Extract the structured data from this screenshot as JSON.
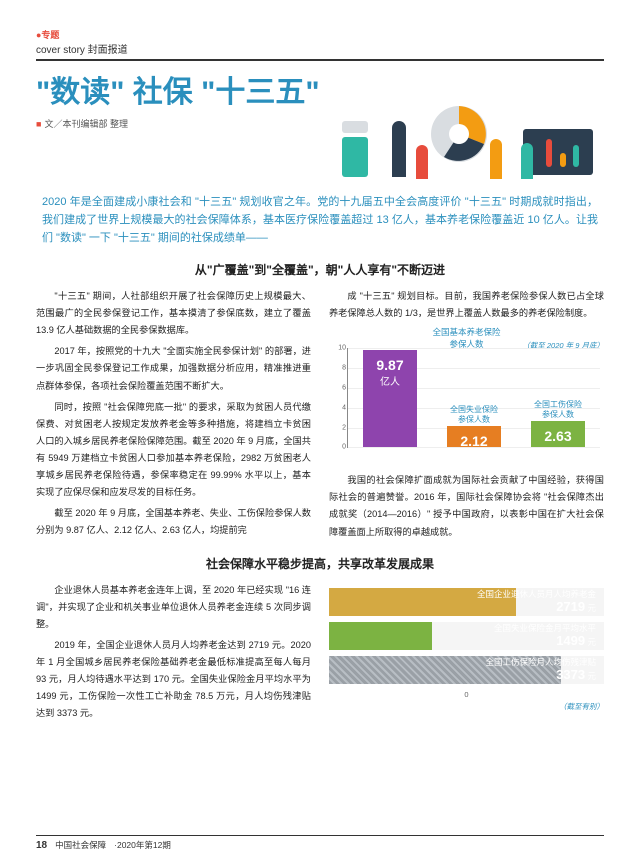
{
  "section": {
    "tag": "●专题",
    "sub": "cover story 封面报道"
  },
  "title": "\"数读\" 社保 \"十三五\"",
  "byline": "文／本刊编辑部  整理",
  "lead": "2020 年是全面建成小康社会和 \"十三五\" 规划收官之年。党的十九届五中全会高度评价 \"十三五\" 时期成就时指出，我们建成了世界上规模最大的社会保障体系，基本医疗保险覆盖超过 13 亿人，基本养老保险覆盖近 10 亿人。让我们 \"数读\" 一下 \"十三五\" 期间的社保成绩单——",
  "h1": "从\"广覆盖\"到\"全覆盖\"，朝\"人人享有\"不断迈进",
  "h2": "社会保障水平稳步提高，共享改革发展成果",
  "p1": "\"十三五\" 期间，人社部组织开展了社会保障历史上规模最大、范围最广的全民参保登记工作，基本摸清了参保底数，建立了覆盖 13.9 亿人基础数据的全民参保数据库。",
  "p2": "2017 年，按照党的十九大 \"全面实施全民参保计划\" 的部署，进一步巩固全民参保登记工作成果，加强数据分析应用，精准推进重点群体参保，各项社会保险覆盖范围不断扩大。",
  "p3": "同时，按照 \"社会保障兜底一批\" 的要求，采取为贫困人员代缴保费、对贫困老人按规定发放养老金等多种措施，将建档立卡贫困人口的入城乡居民养老保险保障范围。截至 2020 年 9 月底，全国共有 5949 万建档立卡贫困人口参加基本养老保险，2982 万贫困老人享城乡居民养老保险待遇，参保率稳定在 99.99% 水平以上，基本实现了应保尽保和应发尽发的目标任务。",
  "p4": "截至 2020 年 9 月底，全国基本养老、失业、工伤保险参保人数分别为 9.87 亿人、2.12 亿人、2.63 亿人，均提前完",
  "p5": "成 \"十三五\" 规划目标。目前，我国养老保险参保人数已占全球养老保障总人数的 1/3，是世界上覆盖人数最多的养老保险制度。",
  "p6": "我国的社会保障扩面成就为国际社会贡献了中国经验，获得国际社会的普遍赞誉。2016 年，国际社会保障协会将 \"社会保障杰出成就奖（2014—2016）\" 授予中国政府，以表彰中国在扩大社会保障覆盖面上所取得的卓越成就。",
  "p7": "企业退休人员基本养老金连年上调，至 2020 年已经实现 \"16 连调\"，并实现了企业和机关事业单位退休人员养老金连续 5 次同步调整。",
  "p8": "2019 年，全国企业退休人员月人均养老金达到 2719 元。2020 年 1 月全国城乡居民养老保险基础养老金最低标准提高至每人每月 93 元，月人均待遇水平达到 170 元。全国失业保险金月平均水平为 1499 元，工伤保险一次性工亡补助金 78.5 万元，月人均伤残津贴达到 3373 元。",
  "chart1": {
    "title_prefix": "全国基本养老保险",
    "title_suffix": "参保人数",
    "note": "（截至 2020 年 9 月底）",
    "ylim": [
      0,
      10
    ],
    "ytick_step": 2,
    "bars": [
      {
        "label_top": "",
        "label_bot": "",
        "value": 9.87,
        "unit": "亿人",
        "color": "#8e44ad"
      },
      {
        "label_top": "全国失业保险",
        "label_bot": "参保人数",
        "value": 2.12,
        "unit": "亿人",
        "color": "#e67e22"
      },
      {
        "label_top": "全国工伤保险",
        "label_bot": "参保人数",
        "value": 2.63,
        "unit": "亿人",
        "color": "#7cb342"
      }
    ]
  },
  "chart2": {
    "max": 4000,
    "rows": [
      {
        "label": "全国企业退休人员月人均养老金",
        "value": 2719,
        "unit": "元",
        "color": "#d4a942",
        "texture": false
      },
      {
        "label": "全国失业保险金月平均水平",
        "value": 1499,
        "unit": "元",
        "color": "#7cb342",
        "texture": false
      },
      {
        "label": "全国工伤保险月人均伤残津贴",
        "value": 3373,
        "unit": "元",
        "color": "#9aa0a6",
        "texture": true
      }
    ],
    "axis_label": "0",
    "note": "（截至有别）"
  },
  "footer": {
    "page": "18",
    "pub": "中国社会保障",
    "issue": "·2020年第12期"
  },
  "colors": {
    "accent": "#2a8fbd",
    "red": "#e74c3c",
    "illus": {
      "teal": "#2fb8a4",
      "orange": "#f39c12",
      "red": "#e74c3c",
      "dark": "#2c3e50",
      "green": "#7cb342",
      "grey": "#d9dde1"
    }
  }
}
